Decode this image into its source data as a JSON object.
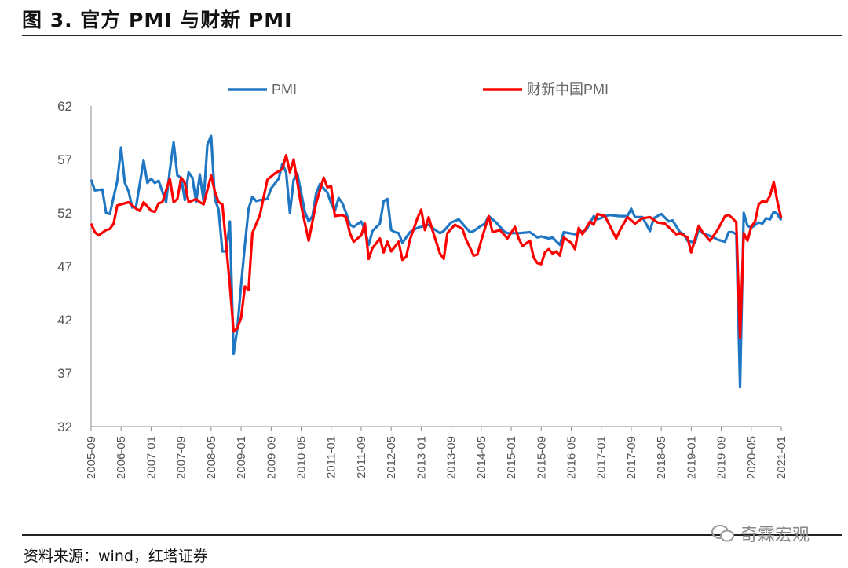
{
  "header": {
    "title": "图 3. 官方 PMI 与财新 PMI"
  },
  "footer": {
    "source": "资料来源：wind，红塔证券",
    "watermark": "奇霖宏观",
    "watermark_icon": "wechat-icon"
  },
  "chart_data": {
    "type": "line",
    "title": "",
    "xlabel": "",
    "ylabel": "",
    "ylim": [
      32,
      62
    ],
    "yticks": [
      32,
      37,
      42,
      47,
      52,
      57,
      62
    ],
    "xrange": [
      "2005-09",
      "2021-01"
    ],
    "xticks": [
      "2005-09",
      "2006-05",
      "2007-01",
      "2007-09",
      "2008-05",
      "2009-01",
      "2009-09",
      "2010-05",
      "2011-01",
      "2011-09",
      "2012-05",
      "2013-01",
      "2013-09",
      "2014-05",
      "2015-01",
      "2015-09",
      "2016-05",
      "2017-01",
      "2017-09",
      "2018-05",
      "2019-01",
      "2019-09",
      "2020-05",
      "2021-01"
    ],
    "grid": false,
    "legend": "top",
    "series": [
      {
        "name": "PMI",
        "color": "#1f77c4",
        "points": [
          [
            "2005-09",
            55.1
          ],
          [
            "2005-10",
            54.1
          ],
          [
            "2005-12",
            54.2
          ],
          [
            "2006-01",
            52.0
          ],
          [
            "2006-02",
            51.9
          ],
          [
            "2006-04",
            55.0
          ],
          [
            "2006-05",
            58.1
          ],
          [
            "2006-06",
            54.8
          ],
          [
            "2006-07",
            54.0
          ],
          [
            "2006-08",
            52.5
          ],
          [
            "2006-09",
            52.6
          ],
          [
            "2006-11",
            56.9
          ],
          [
            "2006-12",
            54.8
          ],
          [
            "2007-01",
            55.2
          ],
          [
            "2007-02",
            54.8
          ],
          [
            "2007-03",
            55.0
          ],
          [
            "2007-05",
            53.0
          ],
          [
            "2007-06",
            56.0
          ],
          [
            "2007-07",
            58.6
          ],
          [
            "2007-08",
            55.5
          ],
          [
            "2007-09",
            55.3
          ],
          [
            "2007-10",
            53.2
          ],
          [
            "2007-11",
            55.8
          ],
          [
            "2007-12",
            55.3
          ],
          [
            "2008-01",
            53.0
          ],
          [
            "2008-02",
            55.6
          ],
          [
            "2008-03",
            53.1
          ],
          [
            "2008-04",
            58.4
          ],
          [
            "2008-05",
            59.2
          ],
          [
            "2008-06",
            53.3
          ],
          [
            "2008-07",
            52.3
          ],
          [
            "2008-08",
            48.4
          ],
          [
            "2008-09",
            48.4
          ],
          [
            "2008-10",
            51.2
          ],
          [
            "2008-11",
            38.8
          ],
          [
            "2008-12",
            41.2
          ],
          [
            "2009-01",
            45.3
          ],
          [
            "2009-02",
            49.0
          ],
          [
            "2009-03",
            52.4
          ],
          [
            "2009-04",
            53.5
          ],
          [
            "2009-05",
            53.1
          ],
          [
            "2009-06",
            53.2
          ],
          [
            "2009-08",
            53.3
          ],
          [
            "2009-09",
            54.3
          ],
          [
            "2009-11",
            55.2
          ],
          [
            "2009-12",
            56.6
          ],
          [
            "2010-01",
            55.8
          ],
          [
            "2010-02",
            52.0
          ],
          [
            "2010-03",
            55.1
          ],
          [
            "2010-04",
            55.7
          ],
          [
            "2010-05",
            53.9
          ],
          [
            "2010-06",
            52.1
          ],
          [
            "2010-07",
            51.2
          ],
          [
            "2010-08",
            51.7
          ],
          [
            "2010-09",
            53.8
          ],
          [
            "2010-10",
            54.7
          ],
          [
            "2010-12",
            53.9
          ],
          [
            "2011-01",
            52.9
          ],
          [
            "2011-02",
            52.2
          ],
          [
            "2011-03",
            53.4
          ],
          [
            "2011-04",
            52.9
          ],
          [
            "2011-05",
            52.0
          ],
          [
            "2011-06",
            50.9
          ],
          [
            "2011-07",
            50.7
          ],
          [
            "2011-09",
            51.2
          ],
          [
            "2011-10",
            50.4
          ],
          [
            "2011-11",
            49.0
          ],
          [
            "2011-12",
            50.3
          ],
          [
            "2012-02",
            51.0
          ],
          [
            "2012-03",
            53.1
          ],
          [
            "2012-04",
            53.3
          ],
          [
            "2012-05",
            50.4
          ],
          [
            "2012-06",
            50.2
          ],
          [
            "2012-07",
            50.1
          ],
          [
            "2012-08",
            49.2
          ],
          [
            "2012-10",
            50.2
          ],
          [
            "2012-12",
            50.6
          ],
          [
            "2013-03",
            50.9
          ],
          [
            "2013-04",
            50.6
          ],
          [
            "2013-06",
            50.1
          ],
          [
            "2013-07",
            50.3
          ],
          [
            "2013-09",
            51.1
          ],
          [
            "2013-11",
            51.4
          ],
          [
            "2013-12",
            51.0
          ],
          [
            "2014-02",
            50.2
          ],
          [
            "2014-03",
            50.3
          ],
          [
            "2014-05",
            50.8
          ],
          [
            "2014-06",
            51.0
          ],
          [
            "2014-07",
            51.7
          ],
          [
            "2014-09",
            51.1
          ],
          [
            "2014-11",
            50.3
          ],
          [
            "2014-12",
            50.1
          ],
          [
            "2015-03",
            50.1
          ],
          [
            "2015-06",
            50.2
          ],
          [
            "2015-08",
            49.7
          ],
          [
            "2015-09",
            49.8
          ],
          [
            "2015-11",
            49.6
          ],
          [
            "2015-12",
            49.7
          ],
          [
            "2016-02",
            49.0
          ],
          [
            "2016-03",
            50.2
          ],
          [
            "2016-06",
            50.0
          ],
          [
            "2016-09",
            50.4
          ],
          [
            "2016-11",
            51.7
          ],
          [
            "2016-12",
            51.4
          ],
          [
            "2017-03",
            51.8
          ],
          [
            "2017-06",
            51.7
          ],
          [
            "2017-08",
            51.7
          ],
          [
            "2017-09",
            52.4
          ],
          [
            "2017-10",
            51.6
          ],
          [
            "2017-12",
            51.6
          ],
          [
            "2018-02",
            50.3
          ],
          [
            "2018-03",
            51.5
          ],
          [
            "2018-05",
            51.9
          ],
          [
            "2018-07",
            51.2
          ],
          [
            "2018-08",
            51.3
          ],
          [
            "2018-10",
            50.2
          ],
          [
            "2018-11",
            50.0
          ],
          [
            "2018-12",
            49.4
          ],
          [
            "2019-02",
            49.2
          ],
          [
            "2019-03",
            50.5
          ],
          [
            "2019-04",
            50.1
          ],
          [
            "2019-07",
            49.7
          ],
          [
            "2019-08",
            49.5
          ],
          [
            "2019-10",
            49.3
          ],
          [
            "2019-11",
            50.2
          ],
          [
            "2019-12",
            50.2
          ],
          [
            "2020-01",
            50.0
          ],
          [
            "2020-02",
            35.7
          ],
          [
            "2020-03",
            52.0
          ],
          [
            "2020-04",
            50.8
          ],
          [
            "2020-05",
            50.6
          ],
          [
            "2020-07",
            51.1
          ],
          [
            "2020-08",
            51.0
          ],
          [
            "2020-09",
            51.5
          ],
          [
            "2020-10",
            51.4
          ],
          [
            "2020-11",
            52.1
          ],
          [
            "2020-12",
            51.9
          ],
          [
            "2021-01",
            51.3
          ]
        ]
      },
      {
        "name": "财新中国PMI",
        "color": "#ff0000",
        "points": [
          [
            "2005-09",
            51.0
          ],
          [
            "2005-10",
            50.2
          ],
          [
            "2005-11",
            49.9
          ],
          [
            "2006-01",
            50.4
          ],
          [
            "2006-02",
            50.5
          ],
          [
            "2006-03",
            51.0
          ],
          [
            "2006-04",
            52.7
          ],
          [
            "2006-07",
            53.0
          ],
          [
            "2006-09",
            52.4
          ],
          [
            "2006-10",
            52.2
          ],
          [
            "2006-11",
            53.0
          ],
          [
            "2006-12",
            52.6
          ],
          [
            "2007-01",
            52.2
          ],
          [
            "2007-02",
            52.1
          ],
          [
            "2007-03",
            52.9
          ],
          [
            "2007-04",
            53.0
          ],
          [
            "2007-06",
            55.2
          ],
          [
            "2007-07",
            53.0
          ],
          [
            "2007-08",
            53.3
          ],
          [
            "2007-09",
            55.3
          ],
          [
            "2007-10",
            54.8
          ],
          [
            "2007-11",
            53.0
          ],
          [
            "2008-01",
            53.3
          ],
          [
            "2008-02",
            53.0
          ],
          [
            "2008-03",
            52.8
          ],
          [
            "2008-05",
            55.5
          ],
          [
            "2008-06",
            54.0
          ],
          [
            "2008-07",
            53.0
          ],
          [
            "2008-08",
            52.8
          ],
          [
            "2008-10",
            45.2
          ],
          [
            "2008-11",
            40.9
          ],
          [
            "2008-12",
            41.2
          ],
          [
            "2009-01",
            42.2
          ],
          [
            "2009-02",
            45.1
          ],
          [
            "2009-03",
            44.8
          ],
          [
            "2009-04",
            50.1
          ],
          [
            "2009-06",
            51.8
          ],
          [
            "2009-08",
            55.1
          ],
          [
            "2009-10",
            55.7
          ],
          [
            "2009-12",
            56.1
          ],
          [
            "2010-01",
            57.4
          ],
          [
            "2010-02",
            55.8
          ],
          [
            "2010-03",
            57.0
          ],
          [
            "2010-05",
            52.7
          ],
          [
            "2010-07",
            49.4
          ],
          [
            "2010-09",
            52.9
          ],
          [
            "2010-11",
            55.3
          ],
          [
            "2010-12",
            54.4
          ],
          [
            "2011-01",
            54.5
          ],
          [
            "2011-02",
            51.7
          ],
          [
            "2011-04",
            51.8
          ],
          [
            "2011-05",
            51.6
          ],
          [
            "2011-06",
            50.1
          ],
          [
            "2011-07",
            49.3
          ],
          [
            "2011-09",
            49.9
          ],
          [
            "2011-10",
            51.0
          ],
          [
            "2011-11",
            47.7
          ],
          [
            "2011-12",
            48.7
          ],
          [
            "2012-02",
            49.6
          ],
          [
            "2012-03",
            48.3
          ],
          [
            "2012-04",
            49.3
          ],
          [
            "2012-05",
            48.4
          ],
          [
            "2012-07",
            49.3
          ],
          [
            "2012-08",
            47.6
          ],
          [
            "2012-09",
            47.9
          ],
          [
            "2012-10",
            49.5
          ],
          [
            "2012-12",
            51.5
          ],
          [
            "2013-01",
            52.3
          ],
          [
            "2013-02",
            50.4
          ],
          [
            "2013-03",
            51.6
          ],
          [
            "2013-04",
            50.4
          ],
          [
            "2013-06",
            48.2
          ],
          [
            "2013-07",
            47.7
          ],
          [
            "2013-08",
            50.1
          ],
          [
            "2013-10",
            50.9
          ],
          [
            "2013-12",
            50.5
          ],
          [
            "2014-01",
            49.5
          ],
          [
            "2014-03",
            48.0
          ],
          [
            "2014-04",
            48.1
          ],
          [
            "2014-05",
            49.4
          ],
          [
            "2014-07",
            51.7
          ],
          [
            "2014-08",
            50.2
          ],
          [
            "2014-10",
            50.4
          ],
          [
            "2014-12",
            49.6
          ],
          [
            "2015-02",
            50.7
          ],
          [
            "2015-03",
            49.6
          ],
          [
            "2015-04",
            48.9
          ],
          [
            "2015-06",
            49.4
          ],
          [
            "2015-07",
            47.8
          ],
          [
            "2015-08",
            47.3
          ],
          [
            "2015-09",
            47.2
          ],
          [
            "2015-10",
            48.3
          ],
          [
            "2015-11",
            48.6
          ],
          [
            "2015-12",
            48.2
          ],
          [
            "2016-01",
            48.4
          ],
          [
            "2016-02",
            48.0
          ],
          [
            "2016-03",
            49.7
          ],
          [
            "2016-05",
            49.2
          ],
          [
            "2016-06",
            48.6
          ],
          [
            "2016-07",
            50.6
          ],
          [
            "2016-08",
            50.0
          ],
          [
            "2016-10",
            51.2
          ],
          [
            "2016-11",
            50.9
          ],
          [
            "2016-12",
            51.9
          ],
          [
            "2017-02",
            51.7
          ],
          [
            "2017-04",
            50.3
          ],
          [
            "2017-05",
            49.6
          ],
          [
            "2017-06",
            50.4
          ],
          [
            "2017-08",
            51.6
          ],
          [
            "2017-10",
            51.0
          ],
          [
            "2017-12",
            51.5
          ],
          [
            "2018-02",
            51.6
          ],
          [
            "2018-04",
            51.1
          ],
          [
            "2018-06",
            51.0
          ],
          [
            "2018-09",
            50.0
          ],
          [
            "2018-10",
            50.1
          ],
          [
            "2018-12",
            49.7
          ],
          [
            "2019-01",
            48.3
          ],
          [
            "2019-03",
            50.8
          ],
          [
            "2019-04",
            50.2
          ],
          [
            "2019-06",
            49.4
          ],
          [
            "2019-08",
            50.4
          ],
          [
            "2019-10",
            51.7
          ],
          [
            "2019-11",
            51.8
          ],
          [
            "2019-12",
            51.5
          ],
          [
            "2020-01",
            51.1
          ],
          [
            "2020-02",
            40.3
          ],
          [
            "2020-03",
            50.1
          ],
          [
            "2020-04",
            49.4
          ],
          [
            "2020-05",
            50.7
          ],
          [
            "2020-06",
            51.2
          ],
          [
            "2020-07",
            52.8
          ],
          [
            "2020-08",
            53.1
          ],
          [
            "2020-09",
            53.0
          ],
          [
            "2020-10",
            53.6
          ],
          [
            "2020-11",
            54.9
          ],
          [
            "2020-12",
            53.0
          ],
          [
            "2021-01",
            51.5
          ]
        ]
      }
    ]
  }
}
